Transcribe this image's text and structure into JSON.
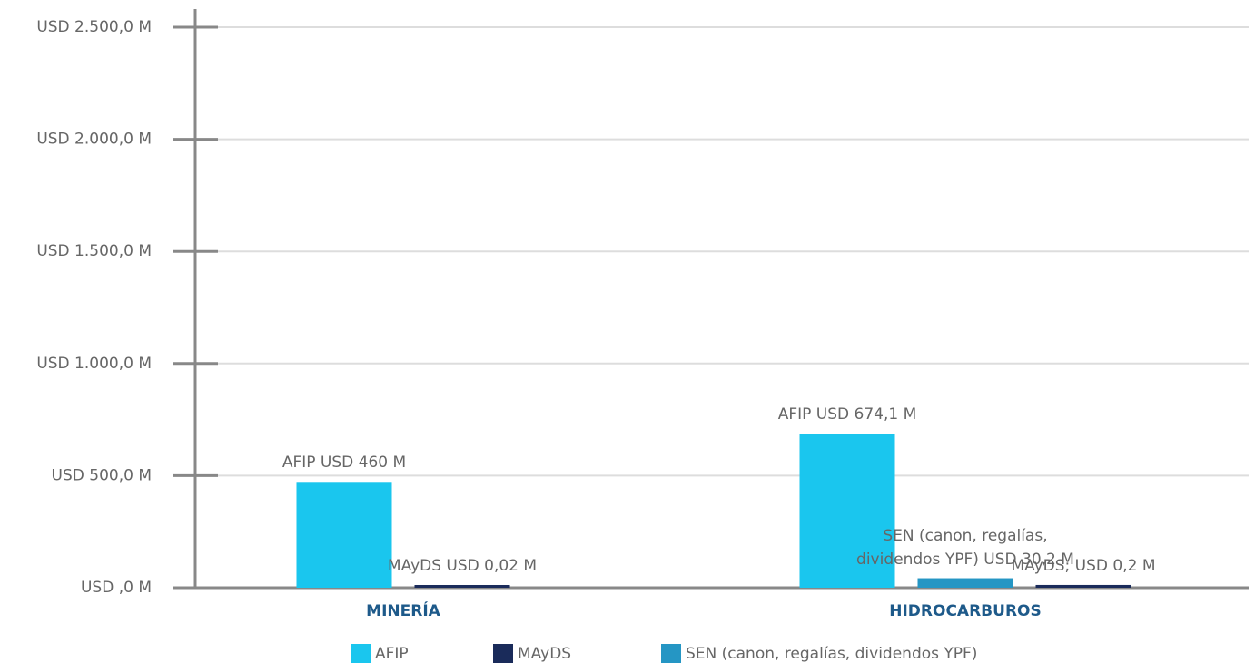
{
  "chart_data": {
    "type": "bar",
    "categories": [
      "MINERÍA",
      "HIDROCARBUROS"
    ],
    "series": [
      {
        "name": "AFIP",
        "color": "#1ac6ee",
        "values": [
          460,
          674.1
        ],
        "value_labels": [
          "AFIP USD 460 M",
          "AFIP USD 674,1 M"
        ]
      },
      {
        "name": "SEN (canon, regalías, dividendos YPF)",
        "color": "#2596c4",
        "values": [
          null,
          30.2
        ],
        "value_labels": [
          null,
          "SEN (canon, regalías, dividendos YPF) USD 30,2 M"
        ]
      },
      {
        "name": "MAyDS",
        "color": "#1a2b5a",
        "values": [
          0.02,
          0.2
        ],
        "value_labels": [
          "MAyDS USD 0,02 M",
          "MAyDS; USD 0,2 M"
        ]
      }
    ],
    "legend_order": [
      0,
      2,
      1
    ],
    "ylim": [
      0,
      2500
    ],
    "yticks": [
      {
        "value": 0,
        "label": "USD ,0 M"
      },
      {
        "value": 500,
        "label": "USD 500,0 M"
      },
      {
        "value": 1000,
        "label": "USD 1.000,0 M"
      },
      {
        "value": 1500,
        "label": "USD 1.500,0 M"
      },
      {
        "value": 2000,
        "label": "USD 2.000,0 M"
      },
      {
        "value": 2500,
        "label": "USD 2.500,0 M"
      }
    ],
    "grid": true
  }
}
